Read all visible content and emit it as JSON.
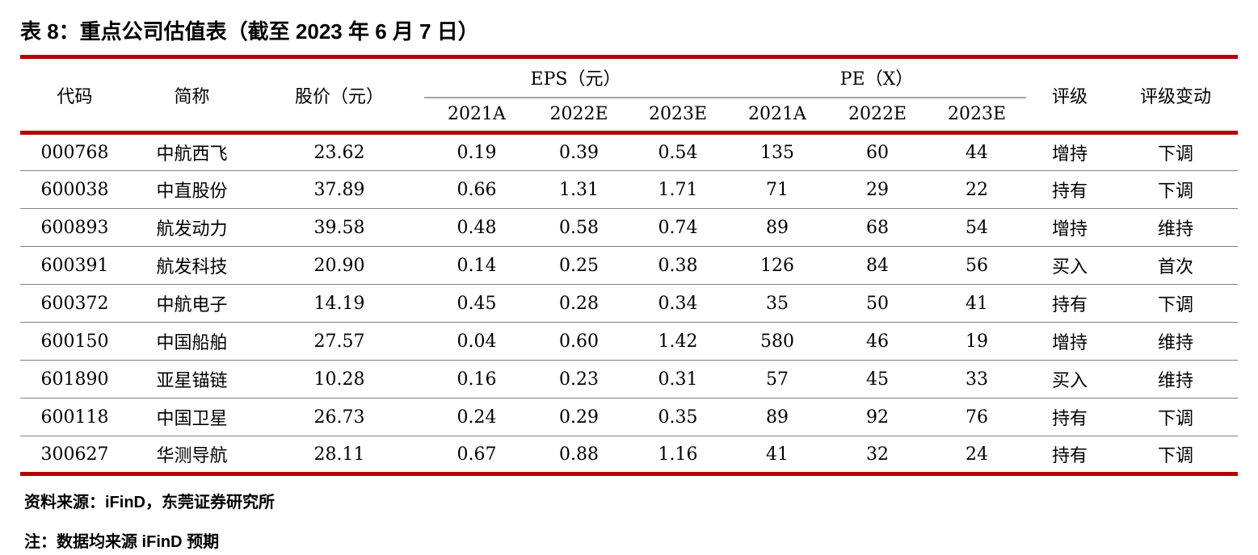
{
  "title": "表 8：重点公司估值表（截至 2023 年 6 月 7 日）",
  "colors": {
    "rule_red": "#b40000",
    "row_divider_gray": "#808080",
    "subheader_line_gray": "#a6a6a6",
    "text": "#000000",
    "background": "#ffffff"
  },
  "table": {
    "headers": {
      "code": "代码",
      "name": "简称",
      "price": "股价（元）",
      "eps_group": "EPS（元）",
      "pe_group": "PE（X）",
      "eps_years": [
        "2021A",
        "2022E",
        "2023E"
      ],
      "pe_years": [
        "2021A",
        "2022E",
        "2023E"
      ],
      "rating": "评级",
      "rating_change": "评级变动"
    },
    "rows": [
      {
        "code": "000768",
        "name": "中航西飞",
        "price": "23.62",
        "eps": [
          "0.19",
          "0.39",
          "0.54"
        ],
        "pe": [
          "135",
          "60",
          "44"
        ],
        "rating": "增持",
        "change": "下调"
      },
      {
        "code": "600038",
        "name": "中直股份",
        "price": "37.89",
        "eps": [
          "0.66",
          "1.31",
          "1.71"
        ],
        "pe": [
          "71",
          "29",
          "22"
        ],
        "rating": "持有",
        "change": "下调"
      },
      {
        "code": "600893",
        "name": "航发动力",
        "price": "39.58",
        "eps": [
          "0.48",
          "0.58",
          "0.74"
        ],
        "pe": [
          "89",
          "68",
          "54"
        ],
        "rating": "增持",
        "change": "维持"
      },
      {
        "code": "600391",
        "name": "航发科技",
        "price": "20.90",
        "eps": [
          "0.14",
          "0.25",
          "0.38"
        ],
        "pe": [
          "126",
          "84",
          "56"
        ],
        "rating": "买入",
        "change": "首次"
      },
      {
        "code": "600372",
        "name": "中航电子",
        "price": "14.19",
        "eps": [
          "0.45",
          "0.28",
          "0.34"
        ],
        "pe": [
          "35",
          "50",
          "41"
        ],
        "rating": "持有",
        "change": "下调"
      },
      {
        "code": "600150",
        "name": "中国船舶",
        "price": "27.57",
        "eps": [
          "0.04",
          "0.60",
          "1.42"
        ],
        "pe": [
          "580",
          "46",
          "19"
        ],
        "rating": "增持",
        "change": "维持"
      },
      {
        "code": "601890",
        "name": "亚星锚链",
        "price": "10.28",
        "eps": [
          "0.16",
          "0.23",
          "0.31"
        ],
        "pe": [
          "57",
          "45",
          "33"
        ],
        "rating": "买入",
        "change": "维持"
      },
      {
        "code": "600118",
        "name": "中国卫星",
        "price": "26.73",
        "eps": [
          "0.24",
          "0.29",
          "0.35"
        ],
        "pe": [
          "89",
          "92",
          "76"
        ],
        "rating": "持有",
        "change": "下调"
      },
      {
        "code": "300627",
        "name": "华测导航",
        "price": "28.11",
        "eps": [
          "0.67",
          "0.88",
          "1.16"
        ],
        "pe": [
          "41",
          "32",
          "24"
        ],
        "rating": "持有",
        "change": "下调"
      }
    ]
  },
  "footnotes": {
    "source": "资料来源：iFinD，东莞证券研究所",
    "note": "注：数据均来源 iFinD 预期"
  }
}
